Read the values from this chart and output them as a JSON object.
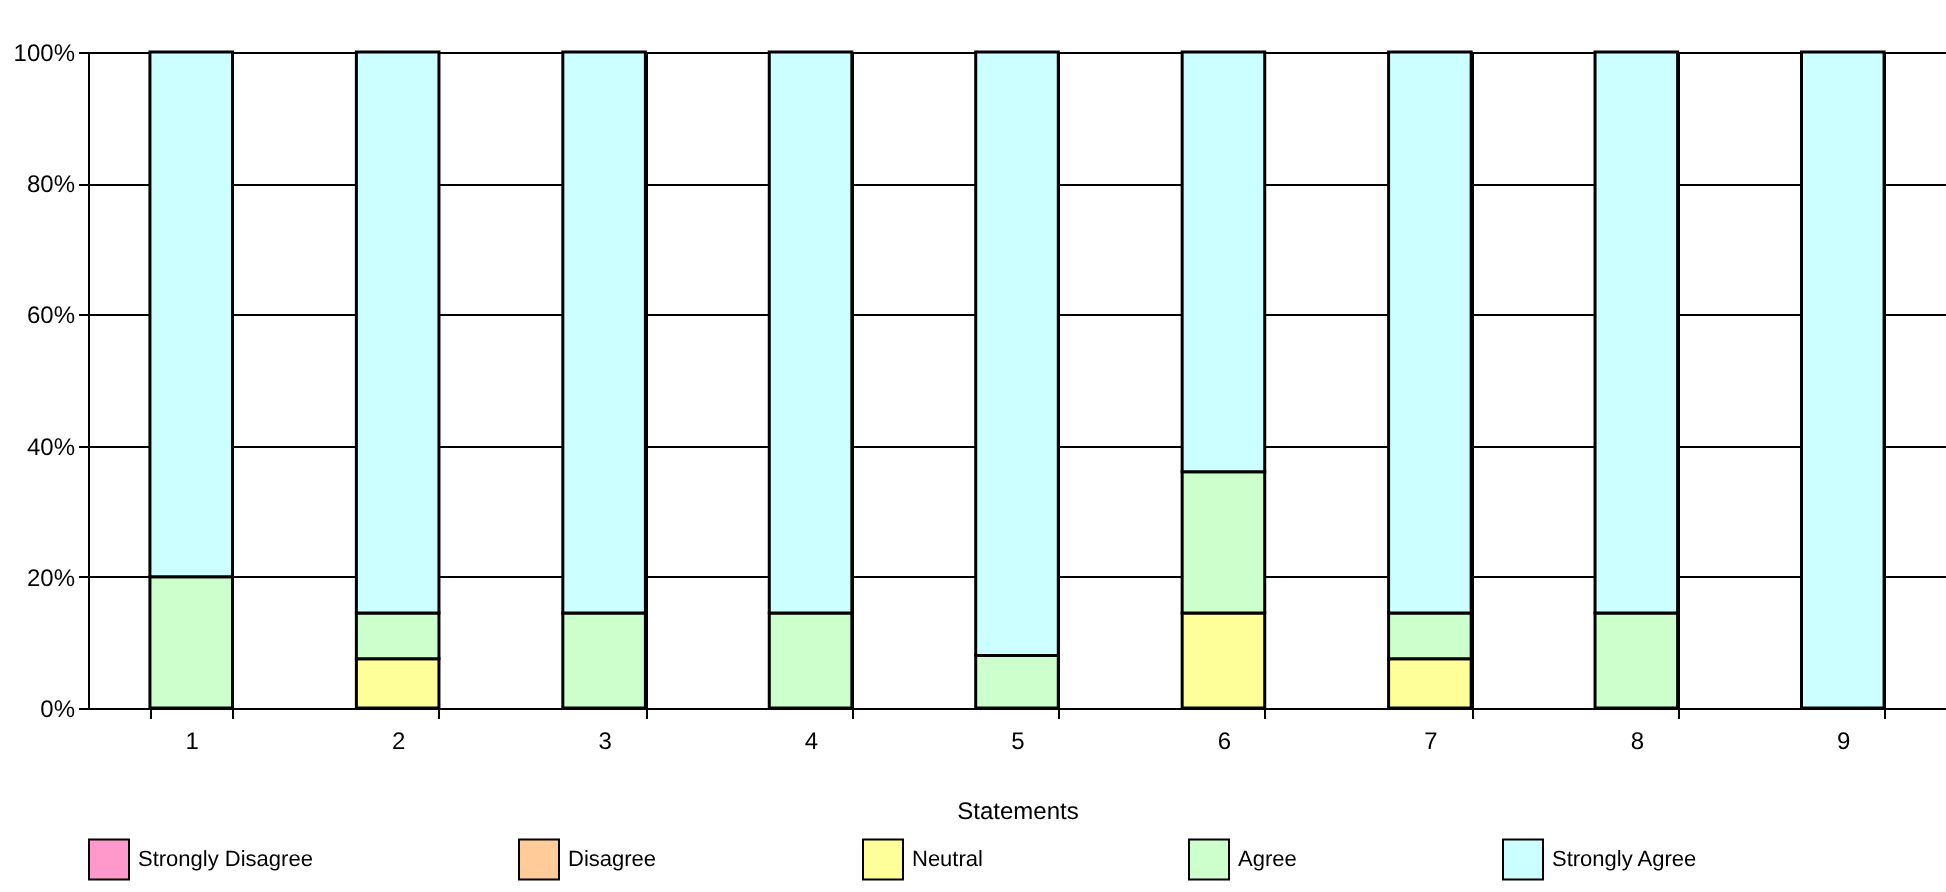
{
  "chart_data": {
    "type": "bar",
    "stacked": true,
    "xlabel": "Statements",
    "categories": [
      "1",
      "2",
      "3",
      "4",
      "5",
      "6",
      "7",
      "8",
      "9"
    ],
    "series": [
      {
        "name": "Strongly Disagree",
        "color": "#ff99cc",
        "values": [
          0,
          0,
          0,
          0,
          0,
          0,
          0,
          0,
          0
        ]
      },
      {
        "name": "Disagree",
        "color": "#ffcc99",
        "values": [
          0,
          0,
          0,
          0,
          0,
          0,
          0,
          0,
          0
        ]
      },
      {
        "name": "Neutral",
        "color": "#ffff99",
        "values": [
          0,
          7.5,
          0,
          0,
          0,
          14.5,
          7.5,
          0,
          0
        ]
      },
      {
        "name": "Agree",
        "color": "#ccffcc",
        "values": [
          20,
          7,
          14.5,
          14.5,
          8,
          21.5,
          7,
          14.5,
          0
        ]
      },
      {
        "name": "Strongly Agree",
        "color": "#ccffff",
        "values": [
          80,
          85.5,
          85.5,
          85.5,
          92,
          64,
          85.5,
          85.5,
          100
        ]
      }
    ],
    "ylim": [
      0,
      100
    ],
    "yticks": [
      {
        "value": 0,
        "label": "0%"
      },
      {
        "value": 20,
        "label": "20%"
      },
      {
        "value": 40,
        "label": "40%"
      },
      {
        "value": 60,
        "label": "60%"
      },
      {
        "value": 80,
        "label": "80%"
      },
      {
        "value": 100,
        "label": "100%"
      }
    ],
    "grid": true,
    "legend": "bottom"
  }
}
